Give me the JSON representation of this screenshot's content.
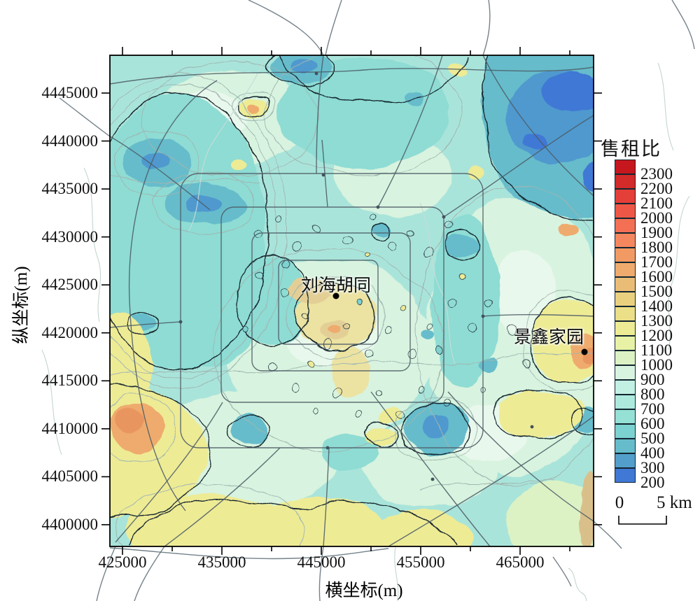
{
  "axes": {
    "x": {
      "label": "横坐标(m)",
      "ticks": [
        "425000",
        "435000",
        "445000",
        "455000",
        "465000"
      ]
    },
    "y": {
      "label": "纵坐标(m)",
      "ticks": [
        "4445000",
        "4440000",
        "4435000",
        "4430000",
        "4425000",
        "4420000",
        "4415000",
        "4410000",
        "4405000",
        "4400000"
      ]
    }
  },
  "legend": {
    "title": "售租比",
    "entries": [
      {
        "value": "2300",
        "color": "#c6171e"
      },
      {
        "value": "2200",
        "color": "#d32a2a"
      },
      {
        "value": "2100",
        "color": "#e43f38"
      },
      {
        "value": "2000",
        "color": "#ee5746"
      },
      {
        "value": "1900",
        "color": "#f37055"
      },
      {
        "value": "1800",
        "color": "#f5875f"
      },
      {
        "value": "1700",
        "color": "#f29a63"
      },
      {
        "value": "1600",
        "color": "#eeab6d"
      },
      {
        "value": "1500",
        "color": "#eabd76"
      },
      {
        "value": "1400",
        "color": "#e9d07e"
      },
      {
        "value": "1300",
        "color": "#ebdf87"
      },
      {
        "value": "1200",
        "color": "#eeeb95"
      },
      {
        "value": "1100",
        "color": "#e7f2a6"
      },
      {
        "value": "1000",
        "color": "#dcf2c5"
      },
      {
        "value": "900",
        "color": "#d8f3df"
      },
      {
        "value": "800",
        "color": "#c2f0e3"
      },
      {
        "value": "700",
        "color": "#adeadd"
      },
      {
        "value": "600",
        "color": "#95e1d6"
      },
      {
        "value": "500",
        "color": "#7cd2d1"
      },
      {
        "value": "400",
        "color": "#66bccb"
      },
      {
        "value": "300",
        "color": "#539fcb"
      },
      {
        "value": "200",
        "color": "#3f78d5"
      }
    ]
  },
  "scalebar": {
    "start": "0",
    "end": "5 km"
  },
  "markers": [
    {
      "label": "刘海胡同"
    },
    {
      "label": "景鑫家园"
    }
  ],
  "chart_data": {
    "type": "heatmap",
    "subtype": "kriging-contour-map",
    "variable": "售租比",
    "xlabel": "横坐标(m)",
    "ylabel": "纵坐标(m)",
    "x_ticks": [
      425000,
      435000,
      445000,
      455000,
      465000
    ],
    "y_ticks": [
      4445000,
      4440000,
      4435000,
      4430000,
      4425000,
      4420000,
      4415000,
      4410000,
      4405000,
      4400000
    ],
    "x_range_approx": [
      423700,
      472400
    ],
    "y_range_approx": [
      4397700,
      4449300
    ],
    "colorbar": {
      "title": "售租比",
      "levels": [
        2300,
        2200,
        2100,
        2000,
        1900,
        1800,
        1700,
        1600,
        1500,
        1400,
        1300,
        1200,
        1100,
        1000,
        900,
        800,
        700,
        600,
        500,
        400,
        300,
        200
      ],
      "colors": [
        "#c6171e",
        "#d32a2a",
        "#e43f38",
        "#ee5746",
        "#f37055",
        "#f5875f",
        "#f29a63",
        "#eeab6d",
        "#eabd76",
        "#e9d07e",
        "#ebdf87",
        "#eeeb95",
        "#e7f2a6",
        "#dcf2c5",
        "#d8f3df",
        "#c2f0e3",
        "#adeadd",
        "#95e1d6",
        "#7cd2d1",
        "#66bccb",
        "#539fcb",
        "#3f78d5"
      ]
    },
    "markers": [
      {
        "name": "刘海胡同",
        "x": 446500,
        "y": 4423900
      },
      {
        "name": "景鑫家园",
        "x": 471500,
        "y": 4418000
      }
    ],
    "scale_bar": {
      "start_label": "0",
      "end_label": "5 km",
      "length_km": 5
    },
    "notes": "Interpolated sale-to-rent ratio surface; cool cyan/blue zones (≈300–900) dominate the north, northeast corner and center-left, while warm yellow/orange zones (≈1200–1700) appear in the southwest corner, along the southern edge, in the city core near 刘海胡同 and around 景鑫家园 at the east edge. Dark gray lines are roads (ring-road grid in the center), thin black/gray lines are contour isolines."
  }
}
